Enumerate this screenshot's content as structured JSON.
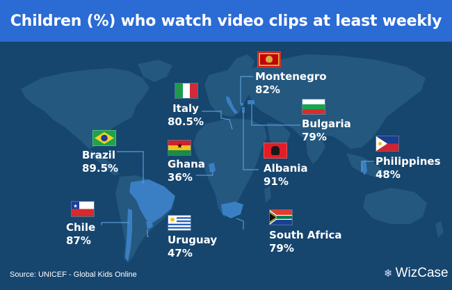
{
  "title": "Children (%) who watch video clips at least weekly",
  "source": "Source: UNICEF - Global Kids Online",
  "logo": {
    "text": "WizCase",
    "icon": "snowflake-logo-icon"
  },
  "colors": {
    "background": "#16456e",
    "land": "#24587f",
    "title_bar": "#2a6bd4",
    "highlight": "#3a7fc4",
    "leader": "#5b9bd5"
  },
  "countries": {
    "montenegro": {
      "name": "Montenegro",
      "value": "82%"
    },
    "italy": {
      "name": "Italy",
      "value": "80.5%"
    },
    "bulgaria": {
      "name": "Bulgaria",
      "value": "79%"
    },
    "brazil": {
      "name": "Brazil",
      "value": "89.5%"
    },
    "ghana": {
      "name": "Ghana",
      "value": "36%"
    },
    "albania": {
      "name": "Albania",
      "value": "91%"
    },
    "philippines": {
      "name": "Philippines",
      "value": "48%"
    },
    "chile": {
      "name": "Chile",
      "value": "87%"
    },
    "uruguay": {
      "name": "Uruguay",
      "value": "47%"
    },
    "south_africa": {
      "name": "South Africa",
      "value": "79%"
    }
  }
}
